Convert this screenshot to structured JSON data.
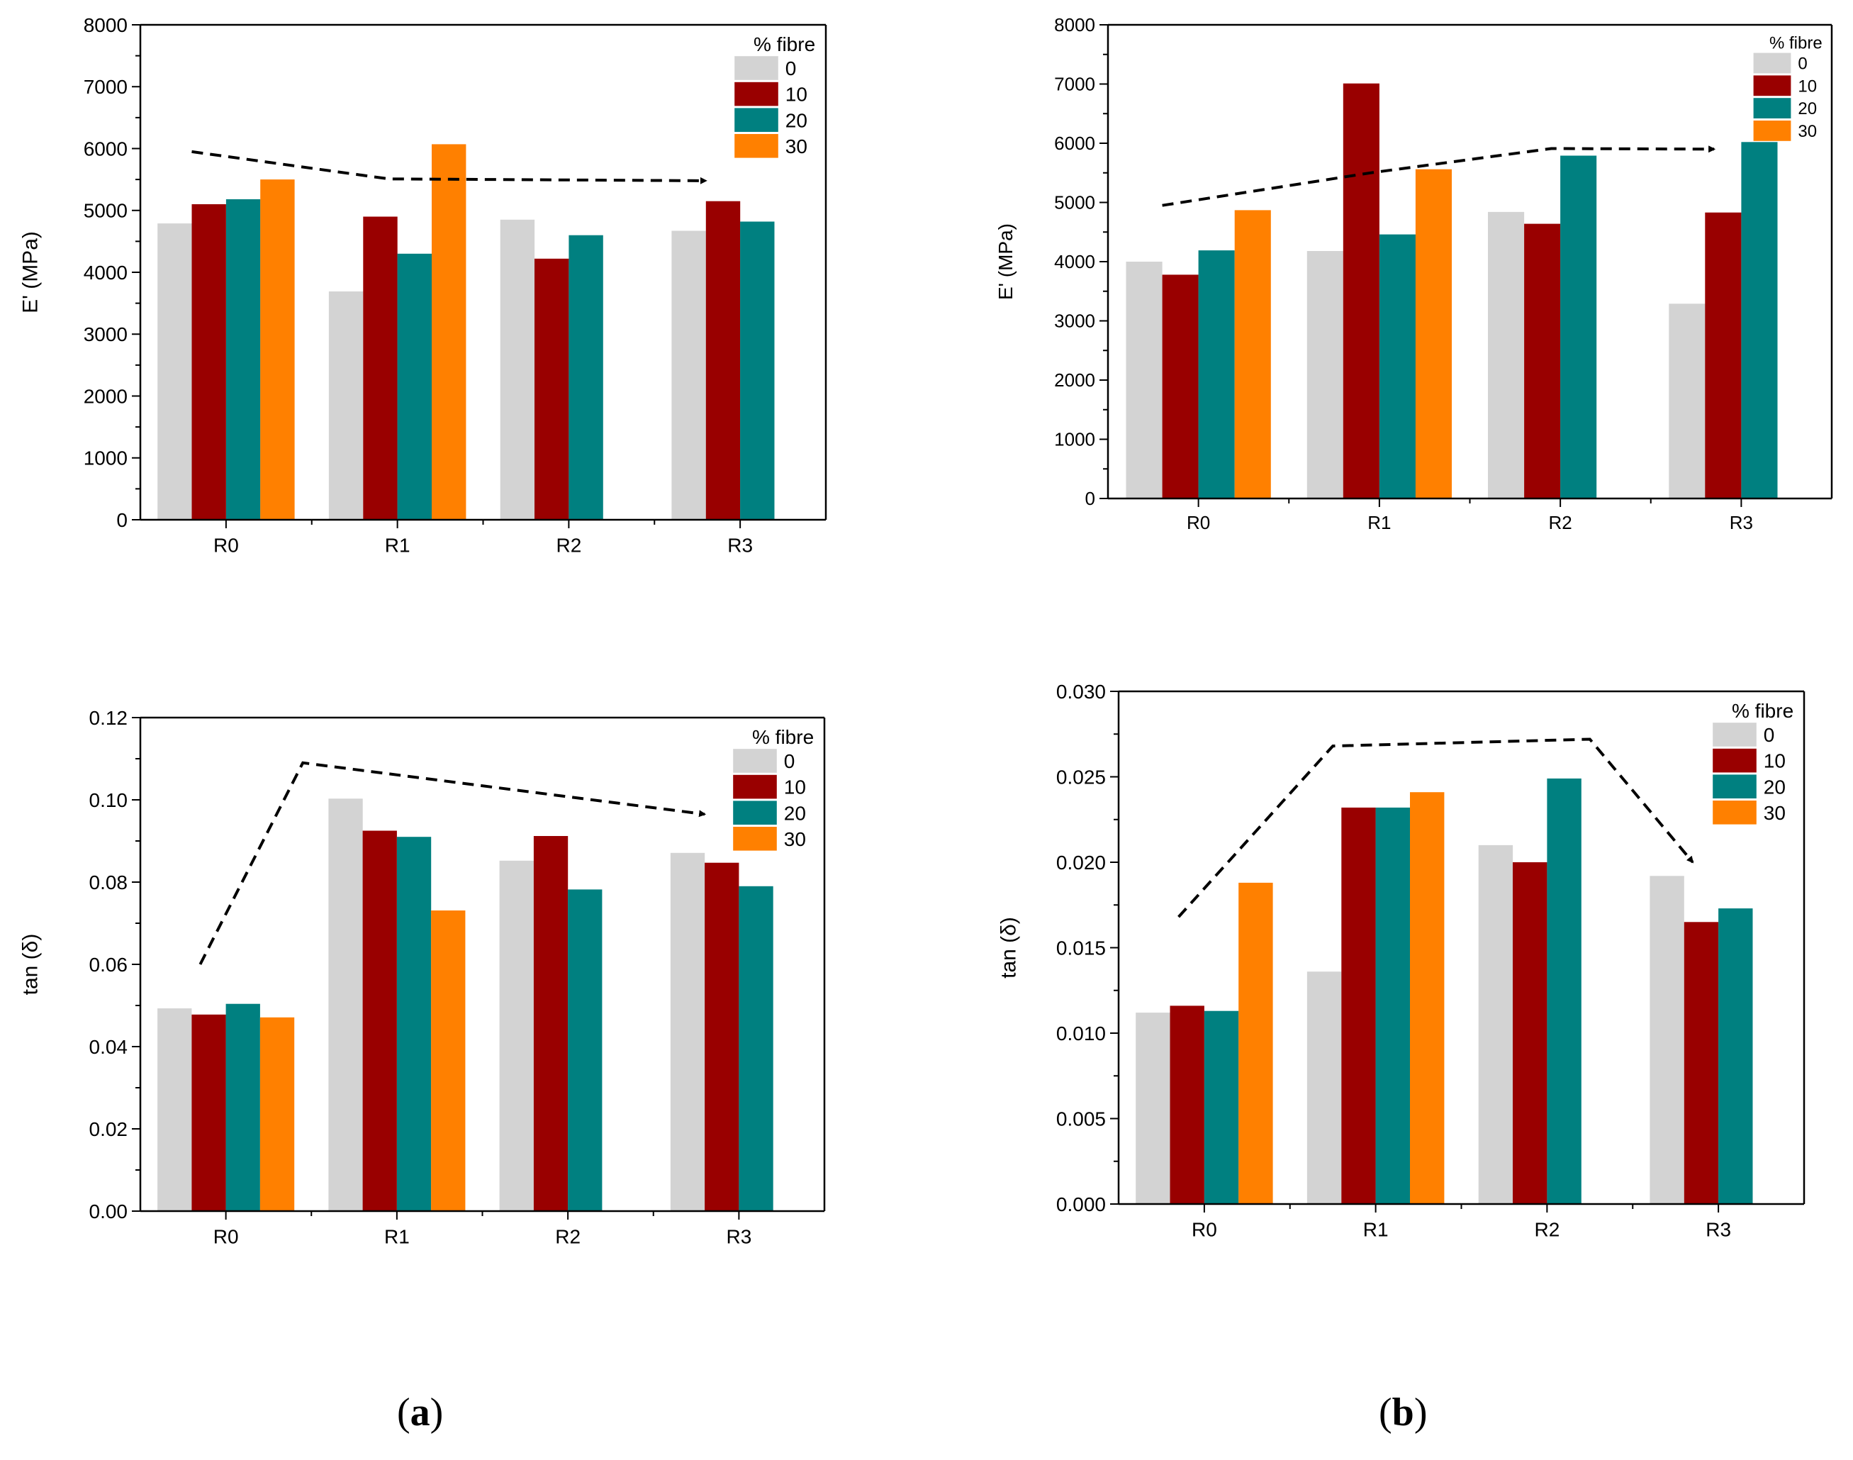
{
  "colors": {
    "0": "#d3d3d3",
    "10": "#990000",
    "20": "#008080",
    "30": "#ff8000",
    "axis": "#000000",
    "trend": "#000000"
  },
  "panel_labels": {
    "a_open": "(",
    "a_letter": "a",
    "a_close": ")",
    "b_open": "(",
    "b_letter": "b",
    "b_close": ")"
  },
  "chart_data": [
    {
      "id": "a-top",
      "type": "bar",
      "title": "",
      "xlabel": "",
      "ylabel": "E' (MPa)",
      "categories": [
        "R0",
        "R1",
        "R2",
        "R3"
      ],
      "ylim": [
        0,
        8000
      ],
      "yticks": [
        0,
        1000,
        2000,
        3000,
        4000,
        5000,
        6000,
        7000,
        8000
      ],
      "ytick_labels": [
        "0",
        "1000",
        "2000",
        "3000",
        "4000",
        "5000",
        "6000",
        "7000",
        "8000"
      ],
      "legend_title": "% fibre",
      "legend_position": "top-right",
      "series": [
        {
          "name": "0",
          "values": [
            4790,
            3690,
            4850,
            4670
          ]
        },
        {
          "name": "10",
          "values": [
            5100,
            4900,
            4220,
            5150
          ]
        },
        {
          "name": "20",
          "values": [
            5180,
            4300,
            4600,
            4820
          ]
        },
        {
          "name": "30",
          "values": [
            5500,
            6070,
            null,
            null
          ]
        }
      ],
      "trend_arrow": {
        "x": [
          -0.2,
          0.95,
          2.8
        ],
        "y": [
          5950,
          5510,
          5480
        ]
      }
    },
    {
      "id": "b-top",
      "type": "bar",
      "title": "",
      "xlabel": "",
      "ylabel": "E' (MPa)",
      "categories": [
        "R0",
        "R1",
        "R2",
        "R3"
      ],
      "ylim": [
        0,
        8000
      ],
      "yticks": [
        0,
        1000,
        2000,
        3000,
        4000,
        5000,
        6000,
        7000,
        8000
      ],
      "ytick_labels": [
        "0",
        "1000",
        "2000",
        "3000",
        "4000",
        "5000",
        "6000",
        "7000",
        "8000"
      ],
      "legend_title": "% fibre",
      "legend_position": "top-right",
      "series": [
        {
          "name": "0",
          "values": [
            4000,
            4180,
            4840,
            3290
          ]
        },
        {
          "name": "10",
          "values": [
            3780,
            7010,
            4640,
            4830
          ]
        },
        {
          "name": "20",
          "values": [
            4190,
            4460,
            5790,
            6020
          ]
        },
        {
          "name": "30",
          "values": [
            4870,
            5560,
            null,
            null
          ]
        }
      ],
      "trend_arrow": {
        "x": [
          -0.2,
          0.95,
          1.95,
          2.85
        ],
        "y": [
          4950,
          5500,
          5910,
          5900
        ]
      }
    },
    {
      "id": "a-bottom",
      "type": "bar",
      "title": "",
      "xlabel": "",
      "ylabel": "tan (δ)",
      "categories": [
        "R0",
        "R1",
        "R2",
        "R3"
      ],
      "ylim": [
        0,
        0.12
      ],
      "yticks": [
        0,
        0.02,
        0.04,
        0.06,
        0.08,
        0.1,
        0.12
      ],
      "ytick_labels": [
        "0.00",
        "0.02",
        "0.04",
        "0.06",
        "0.08",
        "0.10",
        "0.12"
      ],
      "legend_title": "% fibre",
      "legend_position": "top-right",
      "series": [
        {
          "name": "0",
          "values": [
            0.0493,
            0.1003,
            0.0852,
            0.0871
          ]
        },
        {
          "name": "10",
          "values": [
            0.0478,
            0.0925,
            0.0912,
            0.0847
          ]
        },
        {
          "name": "20",
          "values": [
            0.0504,
            0.091,
            0.0782,
            0.079
          ]
        },
        {
          "name": "30",
          "values": [
            0.0471,
            0.0731,
            null,
            null
          ]
        }
      ],
      "trend_arrow": {
        "x": [
          -0.15,
          0.45,
          2.8
        ],
        "y": [
          0.06,
          0.109,
          0.0965
        ]
      }
    },
    {
      "id": "b-bottom",
      "type": "bar",
      "title": "",
      "xlabel": "",
      "ylabel": "tan (δ)",
      "categories": [
        "R0",
        "R1",
        "R2",
        "R3"
      ],
      "ylim": [
        0,
        0.03
      ],
      "yticks": [
        0,
        0.005,
        0.01,
        0.015,
        0.02,
        0.025,
        0.03
      ],
      "ytick_labels": [
        "0.000",
        "0.005",
        "0.010",
        "0.015",
        "0.020",
        "0.025",
        "0.030"
      ],
      "legend_title": "% fibre",
      "legend_position": "top-right",
      "series": [
        {
          "name": "0",
          "values": [
            0.0112,
            0.0136,
            0.021,
            0.0192
          ]
        },
        {
          "name": "10",
          "values": [
            0.0116,
            0.0232,
            0.02,
            0.0165
          ]
        },
        {
          "name": "20",
          "values": [
            0.0113,
            0.0232,
            0.0249,
            0.0173
          ]
        },
        {
          "name": "30",
          "values": [
            0.0188,
            0.0241,
            null,
            null
          ]
        }
      ],
      "trend_arrow": {
        "x": [
          -0.15,
          0.75,
          2.25,
          2.85
        ],
        "y": [
          0.0168,
          0.0268,
          0.0272,
          0.02
        ]
      }
    }
  ]
}
